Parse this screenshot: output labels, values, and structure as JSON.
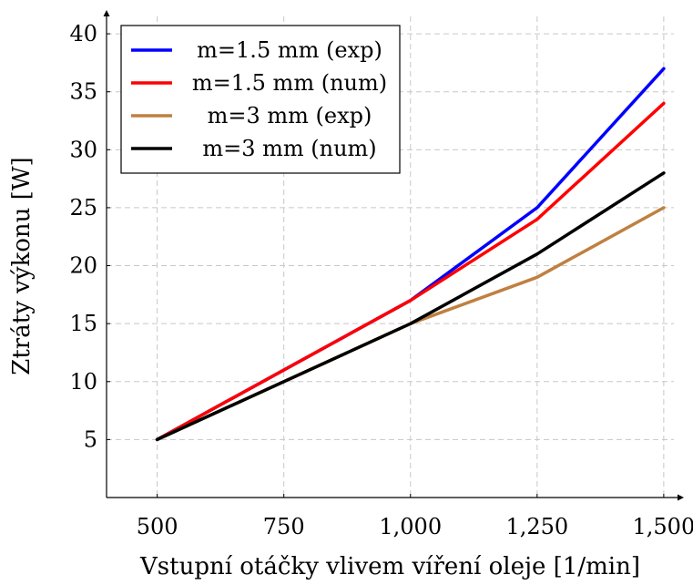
{
  "chart_data": {
    "type": "line",
    "xlabel": "Vstupní otáčky vlivem víření oleje [1/min]",
    "ylabel": "Ztráty výkonu [W]",
    "x": [
      500,
      1000,
      1250,
      1500
    ],
    "xticks": [
      500,
      750,
      1000,
      1250,
      1500
    ],
    "xtick_labels": [
      "500",
      "750",
      "1,000",
      "1,250",
      "1,500"
    ],
    "yticks": [
      5,
      10,
      15,
      20,
      25,
      30,
      35,
      40
    ],
    "ytick_labels": [
      "5",
      "10",
      "15",
      "20",
      "25",
      "30",
      "35",
      "40"
    ],
    "xlim": [
      400,
      1520
    ],
    "ylim": [
      0,
      41.5
    ],
    "grid": true,
    "legend_position": "top-left",
    "series": [
      {
        "name": "m=1.5 mm (exp)",
        "color": "#0000ff",
        "values": [
          5,
          17,
          25,
          37
        ]
      },
      {
        "name": "m=1.5 mm (num)",
        "color": "#ff0000",
        "values": [
          5,
          17,
          24,
          34
        ]
      },
      {
        "name": "m=3 mm (exp)",
        "color": "#bf8040",
        "values": [
          5,
          15,
          19,
          25
        ]
      },
      {
        "name": "m=3 mm (num)",
        "color": "#000000",
        "values": [
          5,
          15,
          21,
          28
        ]
      }
    ]
  }
}
